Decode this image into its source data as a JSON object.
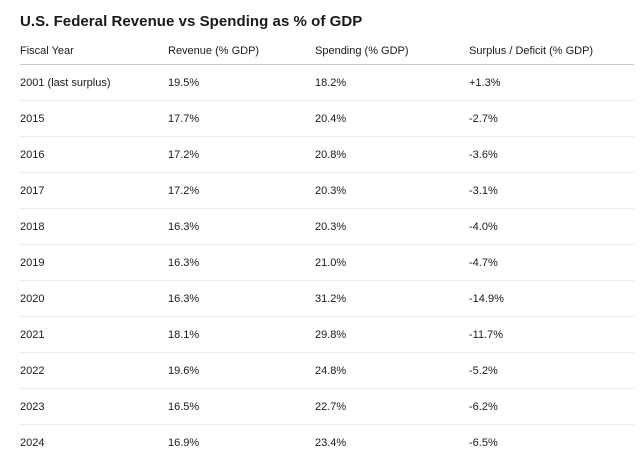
{
  "title": "U.S. Federal Revenue vs Spending as % of GDP",
  "columns": [
    "Fiscal Year",
    "Revenue (% GDP)",
    "Spending (% GDP)",
    "Surplus / Deficit (% GDP)"
  ],
  "rows": [
    [
      "2001 (last surplus)",
      "19.5%",
      "18.2%",
      "+1.3%"
    ],
    [
      "2015",
      "17.7%",
      "20.4%",
      "-2.7%"
    ],
    [
      "2016",
      "17.2%",
      "20.8%",
      "-3.6%"
    ],
    [
      "2017",
      "17.2%",
      "20.3%",
      "-3.1%"
    ],
    [
      "2018",
      "16.3%",
      "20.3%",
      "-4.0%"
    ],
    [
      "2019",
      "16.3%",
      "21.0%",
      "-4.7%"
    ],
    [
      "2020",
      "16.3%",
      "31.2%",
      "-14.9%"
    ],
    [
      "2021",
      "18.1%",
      "29.8%",
      "-11.7%"
    ],
    [
      "2022",
      "19.6%",
      "24.8%",
      "-5.2%"
    ],
    [
      "2023",
      "16.5%",
      "22.7%",
      "-6.2%"
    ],
    [
      "2024",
      "16.9%",
      "23.4%",
      "-6.5%"
    ]
  ]
}
